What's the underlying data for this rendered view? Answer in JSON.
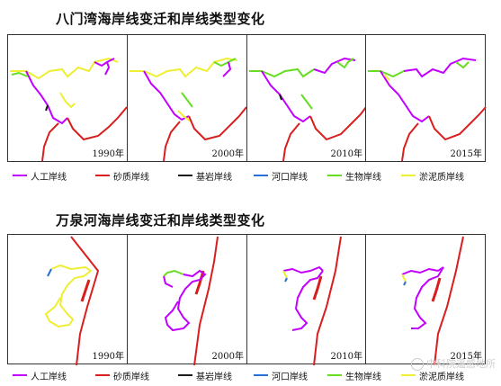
{
  "colors": {
    "artificial": "#c200ff",
    "sandy": "#d81e1e",
    "bedrock": "#1a1a1a",
    "estuary": "#2a6fd6",
    "biological": "#66dd22",
    "muddy": "#eeee33"
  },
  "top_section": {
    "title": "八门湾海岸线变迁和岸线类型变化",
    "years": [
      "1990年",
      "2000年",
      "2010年",
      "2015年"
    ]
  },
  "bottom_section": {
    "title": "万泉河海岸线变迁和岸线类型变化",
    "years": [
      "1990年",
      "2000年",
      "2010年",
      "2015年"
    ]
  },
  "legend": [
    {
      "label": "人工岸线",
      "color": "#c200ff"
    },
    {
      "label": "砂质岸线",
      "color": "#d81e1e"
    },
    {
      "label": "基岩岸线",
      "color": "#1a1a1a"
    },
    {
      "label": "河口岸线",
      "color": "#2a6fd6"
    },
    {
      "label": "生物岸线",
      "color": "#66dd22"
    },
    {
      "label": "淤泥质岸线",
      "color": "#eeee33"
    }
  ],
  "watermark": "中科院遥感地所"
}
